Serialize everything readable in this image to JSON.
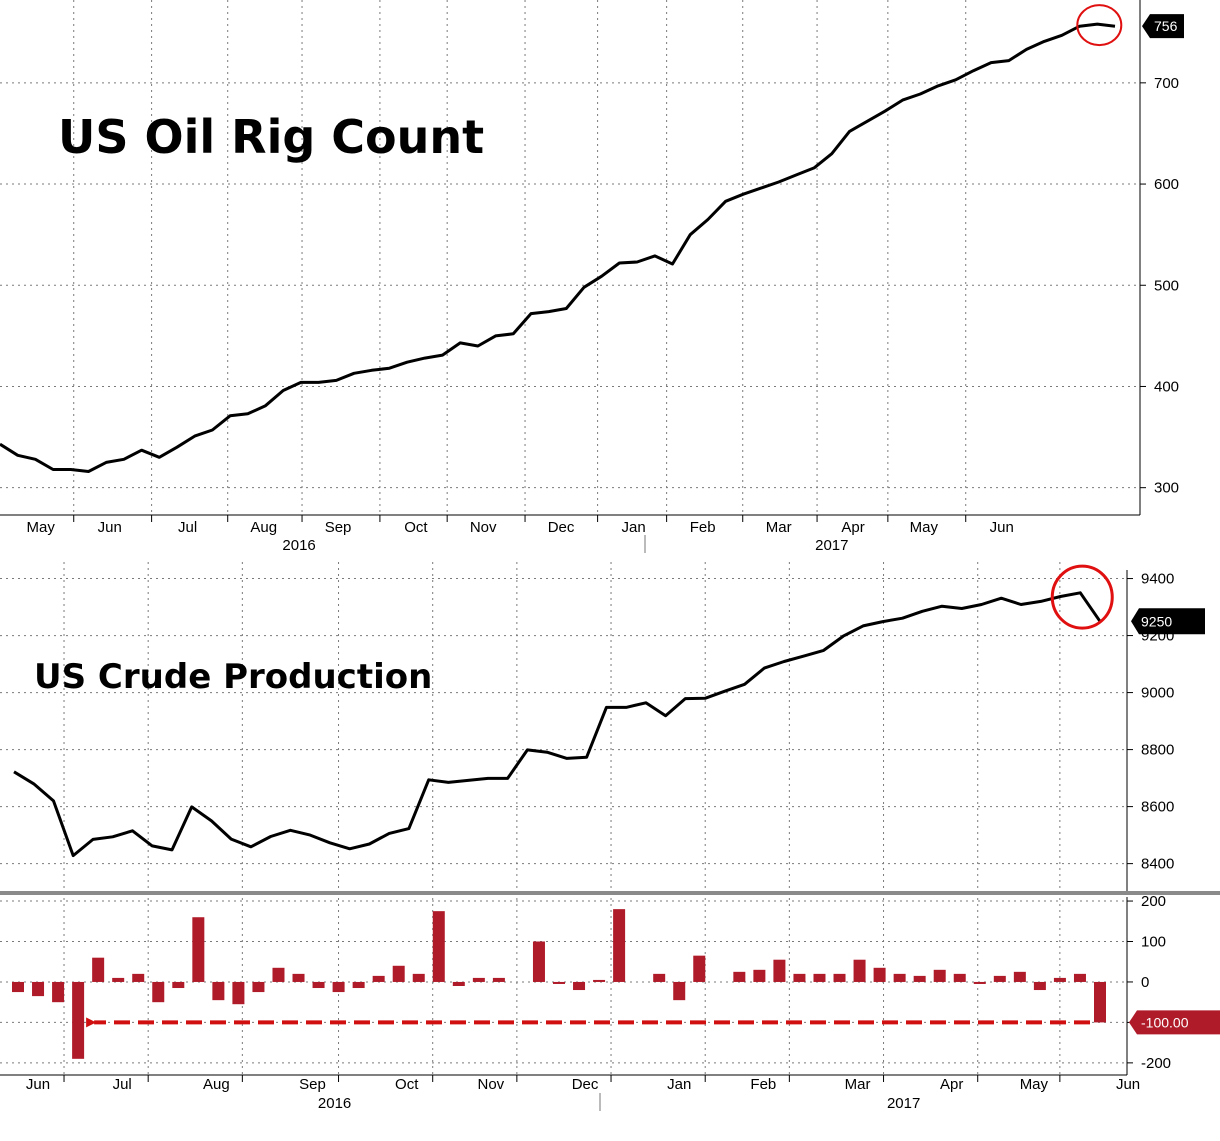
{
  "chart_data": [
    {
      "type": "line",
      "title": "US Oil Rig Count",
      "last_value_label": "756",
      "yticks": [
        300,
        400,
        500,
        600,
        700
      ],
      "ylim": [
        273,
        770
      ],
      "xlim_weeks": [
        0,
        60
      ],
      "month_labels": [
        {
          "label": "May",
          "week": 2.3
        },
        {
          "label": "Jun",
          "week": 6.2
        },
        {
          "label": "Jul",
          "week": 10.6
        },
        {
          "label": "Aug",
          "week": 14.9
        },
        {
          "label": "Sep",
          "week": 19.1
        },
        {
          "label": "Oct",
          "week": 23.5
        },
        {
          "label": "Nov",
          "week": 27.3
        },
        {
          "label": "Dec",
          "week": 31.7
        },
        {
          "label": "Jan",
          "week": 35.8
        },
        {
          "label": "Feb",
          "week": 39.7
        },
        {
          "label": "Mar",
          "week": 44.0
        },
        {
          "label": "Apr",
          "week": 48.2
        },
        {
          "label": "May",
          "week": 52.2
        },
        {
          "label": "Jun",
          "week": 56.6
        }
      ],
      "year_labels": [
        {
          "label": "2016",
          "week": 16.9
        },
        {
          "label": "2017",
          "week": 47.0
        }
      ],
      "grid": true,
      "series": [
        {
          "values": [
            343,
            332,
            328,
            318,
            318,
            316,
            325,
            328,
            337,
            330,
            340,
            351,
            357,
            371,
            373,
            381,
            396,
            404,
            404,
            406,
            413,
            416,
            418,
            424,
            428,
            431,
            443,
            440,
            450,
            452,
            472,
            474,
            477,
            498,
            509,
            522,
            523,
            529,
            521,
            550,
            565,
            583,
            590,
            596,
            602,
            609,
            616,
            630,
            652,
            662,
            672,
            683,
            689,
            697,
            703,
            712,
            720,
            722,
            733,
            741,
            747,
            756,
            758,
            756
          ]
        }
      ],
      "highlight": {
        "week": 58.5,
        "value": 757
      }
    },
    {
      "type": "line",
      "title": "US Crude Production",
      "last_value_label": "9250",
      "yticks": [
        8400,
        8600,
        8800,
        9000,
        9200,
        9400
      ],
      "ylim": [
        8325,
        9430
      ],
      "xlim_weeks": [
        0,
        60
      ],
      "grid": true,
      "series": [
        {
          "values": [
            8722,
            8680,
            8620,
            8428,
            8485,
            8494,
            8515,
            8462,
            8448,
            8599,
            8550,
            8486,
            8459,
            8495,
            8517,
            8500,
            8473,
            8452,
            8469,
            8506,
            8523,
            8694,
            8685,
            8692,
            8699,
            8699,
            8799,
            8791,
            8769,
            8773,
            8948,
            8948,
            8964,
            8919,
            8979,
            8980,
            9005,
            9029,
            9086,
            9109,
            9128,
            9148,
            9198,
            9234,
            9249,
            9261,
            9285,
            9303,
            9295,
            9309,
            9331,
            9309,
            9320,
            9337,
            9350,
            9250
          ]
        }
      ],
      "highlight": {
        "week": 53,
        "value": 9335
      }
    },
    {
      "type": "bar",
      "title": "",
      "last_value_label": "-100.00",
      "yticks": [
        -200,
        -100,
        0,
        100,
        200
      ],
      "ylim": [
        -230,
        210
      ],
      "xlim_weeks": [
        0,
        60
      ],
      "grid": true,
      "month_labels": [
        {
          "label": "Jun",
          "week": 0.6
        },
        {
          "label": "Jul",
          "week": 4.8
        },
        {
          "label": "Aug",
          "week": 9.5
        },
        {
          "label": "Sep",
          "week": 14.3
        },
        {
          "label": "Oct",
          "week": 19.0
        },
        {
          "label": "Nov",
          "week": 23.2
        },
        {
          "label": "Dec",
          "week": 27.9
        },
        {
          "label": "Jan",
          "week": 32.6
        },
        {
          "label": "Feb",
          "week": 36.8
        },
        {
          "label": "Mar",
          "week": 41.5
        },
        {
          "label": "Apr",
          "week": 46.2
        },
        {
          "label": "May",
          "week": 50.3
        },
        {
          "label": "Jun",
          "week": 55.0
        }
      ],
      "year_labels": [
        {
          "label": "2016",
          "week": 15.8
        },
        {
          "label": "2017",
          "week": 44.2
        }
      ],
      "values": [
        -25,
        -35,
        -50,
        -190,
        60,
        10,
        20,
        -50,
        -15,
        160,
        -45,
        -55,
        -25,
        35,
        20,
        -15,
        -25,
        -15,
        15,
        40,
        20,
        175,
        -10,
        10,
        10,
        0,
        100,
        -5,
        -20,
        5,
        180,
        0,
        20,
        -45,
        65,
        0,
        25,
        30,
        55,
        20,
        20,
        20,
        55,
        35,
        20,
        15,
        30,
        20,
        -5,
        15,
        25,
        -20,
        10,
        20,
        -100
      ],
      "annotation": "arrow"
    }
  ]
}
